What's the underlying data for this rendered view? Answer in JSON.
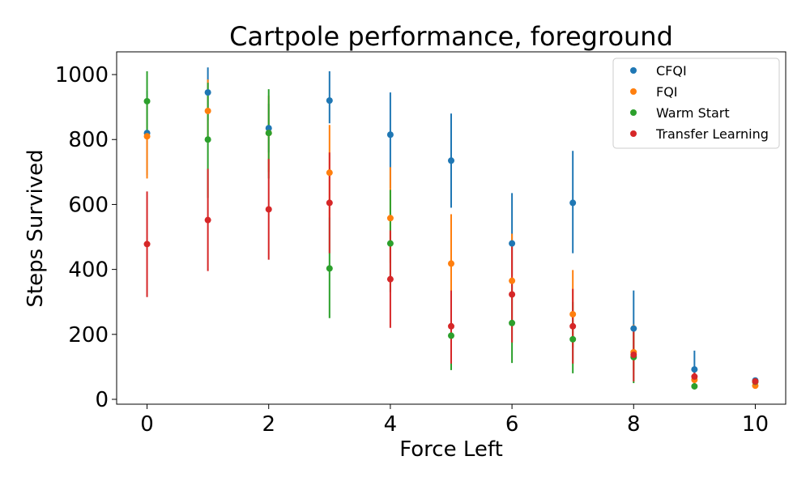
{
  "chart_data": {
    "type": "scatter",
    "title": "Cartpole performance, foreground",
    "xlabel": "Force Left",
    "ylabel": "Steps Survived",
    "xlim": [
      -0.5,
      10.5
    ],
    "ylim": [
      -15,
      1070
    ],
    "xticks": [
      0,
      2,
      4,
      6,
      8,
      10
    ],
    "yticks": [
      0,
      200,
      400,
      600,
      800,
      1000
    ],
    "grid": false,
    "legend_position": "top-right",
    "series": [
      {
        "name": "CFQI",
        "color": "#1f77b4",
        "x": [
          0,
          1,
          2,
          3,
          4,
          5,
          6,
          7,
          8,
          9,
          10
        ],
        "y": [
          820,
          945,
          835,
          920,
          815,
          735,
          480,
          605,
          218,
          92,
          58
        ],
        "err_low": [
          690,
          860,
          760,
          850,
          650,
          590,
          380,
          450,
          150,
          60,
          50
        ],
        "err_high": [
          950,
          1022,
          910,
          1010,
          945,
          880,
          635,
          765,
          335,
          150,
          66
        ]
      },
      {
        "name": "FQI",
        "color": "#ff7f0e",
        "x": [
          0,
          1,
          2,
          3,
          4,
          5,
          6,
          7,
          8,
          9,
          10
        ],
        "y": [
          810,
          888,
          820,
          698,
          558,
          418,
          365,
          262,
          145,
          60,
          42
        ],
        "err_low": [
          680,
          790,
          700,
          560,
          420,
          270,
          240,
          160,
          90,
          42,
          36
        ],
        "err_high": [
          920,
          985,
          935,
          845,
          715,
          570,
          510,
          398,
          230,
          80,
          50
        ]
      },
      {
        "name": "Warm Start",
        "color": "#2ca02c",
        "x": [
          0,
          1,
          2,
          3,
          4,
          5,
          6,
          7,
          8,
          9,
          10
        ],
        "y": [
          918,
          800,
          820,
          403,
          480,
          196,
          235,
          185,
          130,
          40,
          54
        ],
        "err_low": [
          820,
          620,
          680,
          250,
          330,
          90,
          112,
          80,
          50,
          32,
          46
        ],
        "err_high": [
          1010,
          975,
          955,
          560,
          645,
          300,
          360,
          300,
          220,
          50,
          62
        ]
      },
      {
        "name": "Transfer Learning",
        "color": "#d62728",
        "x": [
          0,
          1,
          2,
          3,
          4,
          5,
          6,
          7,
          8,
          9,
          10
        ],
        "y": [
          478,
          552,
          585,
          605,
          370,
          225,
          323,
          225,
          137,
          70,
          55
        ],
        "err_low": [
          315,
          395,
          430,
          450,
          220,
          110,
          175,
          110,
          55,
          52,
          46
        ],
        "err_high": [
          640,
          710,
          740,
          760,
          520,
          335,
          470,
          340,
          215,
          88,
          64
        ]
      }
    ]
  }
}
